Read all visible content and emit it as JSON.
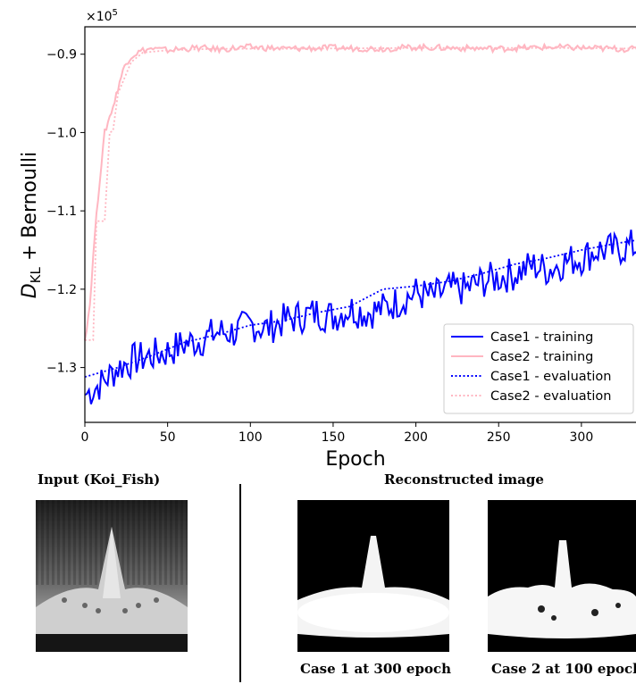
{
  "chart_data": {
    "type": "line",
    "xlabel": "Epoch",
    "ylabel_main": "D",
    "ylabel_sub": "KL",
    "ylabel_rest": " + Bernoulli",
    "scale_base": "×10",
    "scale_exp": "5",
    "xlim": [
      0,
      340
    ],
    "ylim": [
      -1.37,
      -0.865
    ],
    "xticks": [
      "0",
      "50",
      "100",
      "150",
      "200",
      "250",
      "300"
    ],
    "xtick_values": [
      0,
      50,
      100,
      150,
      200,
      250,
      300
    ],
    "yticks": [
      "−0.9",
      "−1.0",
      "−1.1",
      "−1.2",
      "−1.3"
    ],
    "ytick_values": [
      -0.9,
      -1.0,
      -1.1,
      -1.2,
      -1.3
    ],
    "legend_position": "lower-right",
    "series": [
      {
        "name": "Case1 - training",
        "color": "#0000ff",
        "style": "solid",
        "x": [
          0,
          10,
          20,
          30,
          40,
          50,
          60,
          70,
          80,
          90,
          100,
          110,
          120,
          130,
          140,
          150,
          160,
          170,
          180,
          190,
          200,
          210,
          220,
          230,
          240,
          250,
          260,
          270,
          280,
          290,
          300,
          310,
          320,
          330,
          340
        ],
        "y": [
          -1.335,
          -1.32,
          -1.3,
          -1.29,
          -1.285,
          -1.28,
          -1.27,
          -1.265,
          -1.255,
          -1.255,
          -1.245,
          -1.25,
          -1.24,
          -1.235,
          -1.23,
          -1.235,
          -1.225,
          -1.23,
          -1.225,
          -1.215,
          -1.205,
          -1.21,
          -1.2,
          -1.2,
          -1.19,
          -1.185,
          -1.18,
          -1.17,
          -1.175,
          -1.165,
          -1.16,
          -1.15,
          -1.15,
          -1.145,
          -1.15
        ]
      },
      {
        "name": "Case2 - training",
        "color": "#ffb6c1",
        "style": "solid",
        "x": [
          0,
          3,
          6,
          9,
          12,
          15,
          18,
          21,
          24,
          27,
          30,
          35,
          40,
          50,
          60,
          70,
          80,
          100,
          120,
          150,
          180,
          200,
          220,
          250,
          280,
          300,
          320,
          340
        ],
        "y": [
          -1.265,
          -1.22,
          -1.13,
          -1.06,
          -1.0,
          -0.98,
          -0.96,
          -0.935,
          -0.915,
          -0.905,
          -0.9,
          -0.895,
          -0.893,
          -0.895,
          -0.893,
          -0.892,
          -0.894,
          -0.891,
          -0.893,
          -0.892,
          -0.893,
          -0.891,
          -0.892,
          -0.893,
          -0.891,
          -0.892,
          -0.893,
          -0.894
        ]
      },
      {
        "name": "Case1 - evaluation",
        "color": "#0000ff",
        "style": "dotted",
        "x": [
          0,
          20,
          40,
          60,
          80,
          100,
          120,
          140,
          160,
          180,
          200,
          220,
          240,
          260,
          280,
          300,
          320,
          340
        ],
        "y": [
          -1.312,
          -1.3,
          -1.285,
          -1.268,
          -1.258,
          -1.246,
          -1.24,
          -1.23,
          -1.222,
          -1.2,
          -1.196,
          -1.19,
          -1.18,
          -1.168,
          -1.16,
          -1.15,
          -1.142,
          -1.135
        ]
      },
      {
        "name": "Case2 - evaluation",
        "color": "#ffb6c1",
        "style": "dotted",
        "x": [
          0,
          5,
          7,
          12,
          15,
          17,
          20,
          24,
          28,
          35,
          50,
          80,
          120,
          200,
          300,
          340
        ],
        "y": [
          -1.265,
          -1.265,
          -1.113,
          -1.113,
          -1.0,
          -0.998,
          -0.95,
          -0.93,
          -0.91,
          -0.898,
          -0.895,
          -0.893,
          -0.893,
          -0.892,
          -0.892,
          -0.893
        ]
      }
    ]
  },
  "panels": {
    "input_title": "Input (Koi_Fish)",
    "recon_title": "Reconstructed image",
    "case1_caption": "Case 1 at 300 epoch",
    "case2_caption": "Case 2 at 100 epoch"
  }
}
